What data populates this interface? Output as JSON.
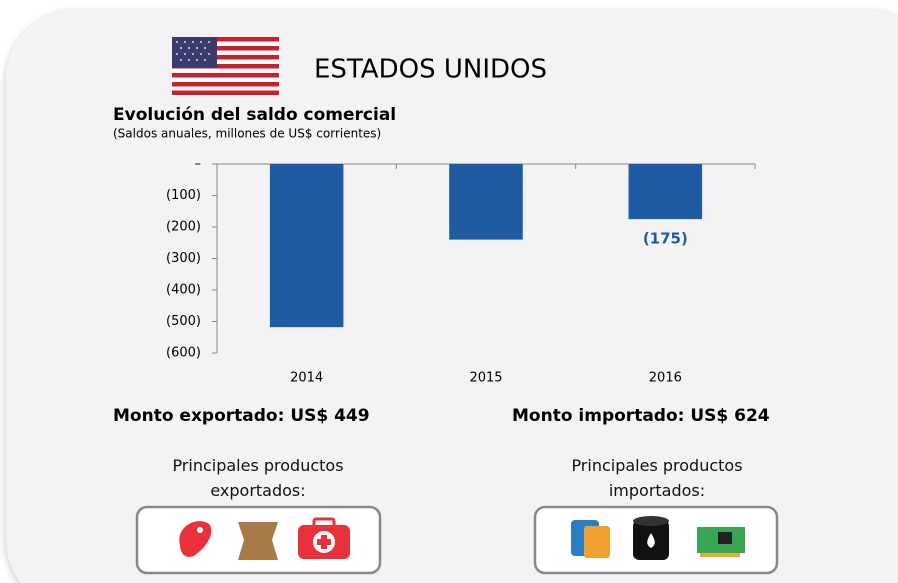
{
  "header": {
    "title": "ESTADOS UNIDOS"
  },
  "chart_data": {
    "type": "bar",
    "title": "Evolución del saldo comercial",
    "subtitle": "(Saldos anuales, millones de US$ corrientes)",
    "categories": [
      "2014",
      "2015",
      "2016"
    ],
    "values": [
      -518,
      -240,
      -175
    ],
    "value_labels": [
      null,
      null,
      "(175)"
    ],
    "color": "#1f5ba3",
    "ylim": [
      -600,
      0
    ],
    "yticks": [
      {
        "value": 0,
        "label": "–"
      },
      {
        "value": -100,
        "label": "(100)"
      },
      {
        "value": -200,
        "label": "(200)"
      },
      {
        "value": -300,
        "label": "(300)"
      },
      {
        "value": -400,
        "label": "(400)"
      },
      {
        "value": -500,
        "label": "(500)"
      },
      {
        "value": -600,
        "label": "(600)"
      }
    ]
  },
  "exports": {
    "amount": "Monto exportado: US$ 449",
    "products": "Principales productos exportados:"
  },
  "imports": {
    "amount": "Monto importado: US$ 624",
    "products": "Principales productos importados:"
  }
}
